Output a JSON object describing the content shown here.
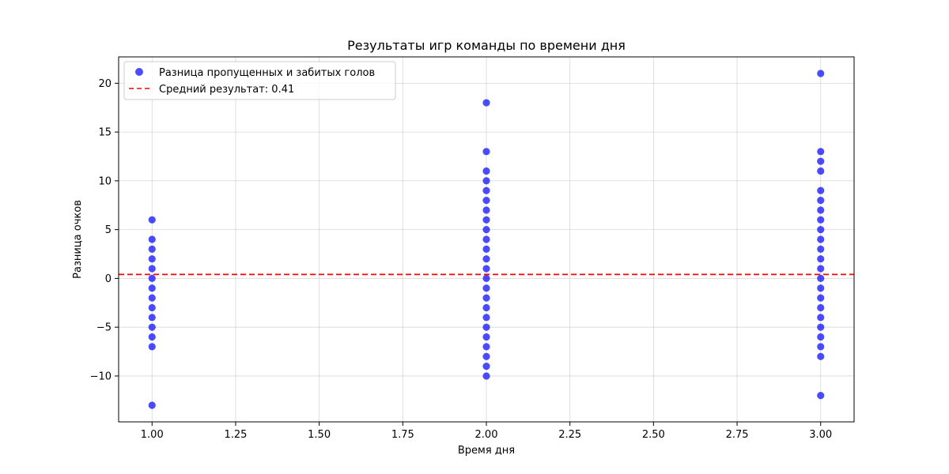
{
  "chart_data": {
    "type": "scatter",
    "title": "Результаты игр команды по времени дня",
    "xlabel": "Время дня",
    "ylabel": "Разница очков",
    "xlim": [
      0.9,
      3.1
    ],
    "ylim": [
      -14.7,
      22.7
    ],
    "xticks": [
      1.0,
      1.25,
      1.5,
      1.75,
      2.0,
      2.25,
      2.5,
      2.75,
      3.0
    ],
    "xtick_labels": [
      "1.00",
      "1.25",
      "1.50",
      "1.75",
      "2.00",
      "2.25",
      "2.50",
      "2.75",
      "3.00"
    ],
    "yticks": [
      -10,
      -5,
      0,
      5,
      10,
      15,
      20
    ],
    "ytick_labels": [
      "−10",
      "−5",
      "0",
      "5",
      "10",
      "15",
      "20"
    ],
    "grid": true,
    "legend_position": "upper-left",
    "series": [
      {
        "name": "Разница пропущенных и забитых голов",
        "kind": "scatter",
        "color": "#0000ff",
        "points": [
          [
            1,
            6
          ],
          [
            1,
            4
          ],
          [
            1,
            3
          ],
          [
            1,
            2
          ],
          [
            1,
            1
          ],
          [
            1,
            0
          ],
          [
            1,
            -1
          ],
          [
            1,
            -2
          ],
          [
            1,
            -3
          ],
          [
            1,
            -4
          ],
          [
            1,
            -5
          ],
          [
            1,
            -6
          ],
          [
            1,
            -7
          ],
          [
            1,
            -13
          ],
          [
            2,
            18
          ],
          [
            2,
            13
          ],
          [
            2,
            11
          ],
          [
            2,
            10
          ],
          [
            2,
            9
          ],
          [
            2,
            8
          ],
          [
            2,
            7
          ],
          [
            2,
            6
          ],
          [
            2,
            5
          ],
          [
            2,
            4
          ],
          [
            2,
            3
          ],
          [
            2,
            2
          ],
          [
            2,
            1
          ],
          [
            2,
            0
          ],
          [
            2,
            -1
          ],
          [
            2,
            -2
          ],
          [
            2,
            -3
          ],
          [
            2,
            -4
          ],
          [
            2,
            -5
          ],
          [
            2,
            -6
          ],
          [
            2,
            -7
          ],
          [
            2,
            -8
          ],
          [
            2,
            -9
          ],
          [
            2,
            -10
          ],
          [
            3,
            21
          ],
          [
            3,
            13
          ],
          [
            3,
            12
          ],
          [
            3,
            11
          ],
          [
            3,
            9
          ],
          [
            3,
            8
          ],
          [
            3,
            7
          ],
          [
            3,
            6
          ],
          [
            3,
            5
          ],
          [
            3,
            4
          ],
          [
            3,
            3
          ],
          [
            3,
            2
          ],
          [
            3,
            1
          ],
          [
            3,
            0
          ],
          [
            3,
            -1
          ],
          [
            3,
            -2
          ],
          [
            3,
            -3
          ],
          [
            3,
            -4
          ],
          [
            3,
            -5
          ],
          [
            3,
            -6
          ],
          [
            3,
            -7
          ],
          [
            3,
            -8
          ],
          [
            3,
            -12
          ]
        ]
      },
      {
        "name": "Средний результат: 0.41",
        "kind": "hline",
        "value": 0.41,
        "color": "#ff0000",
        "style": "dashed"
      }
    ]
  }
}
